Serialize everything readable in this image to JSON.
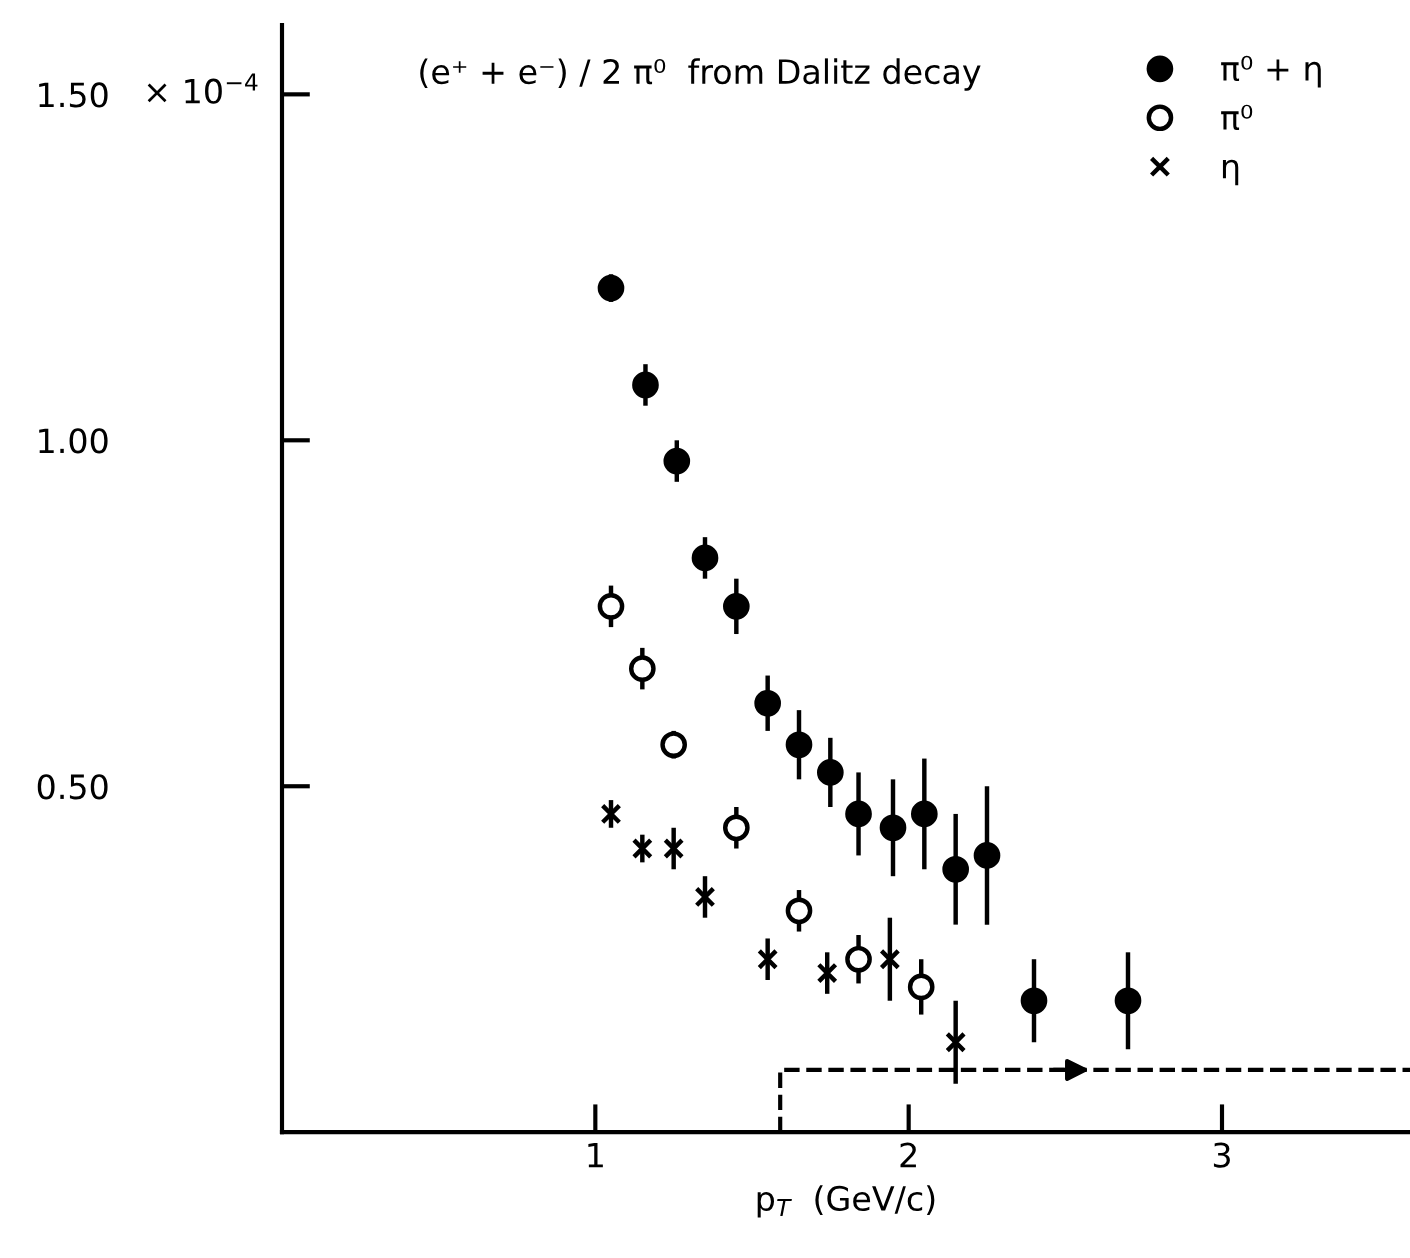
{
  "chart_data": {
    "type": "scatter",
    "title": "(e⁺ + e⁻) / 2 π⁰  from Dalitz decay",
    "xlabel": "p$_{T}$  (GeV/c)",
    "xlim": [
      0,
      3.6
    ],
    "xticks": [
      1,
      2,
      3
    ],
    "ylim": [
      0,
      1.6
    ],
    "yticks": [
      {
        "value": 0.5,
        "label": "0.50"
      },
      {
        "value": 1.0,
        "label": "1.00"
      },
      {
        "value": 1.5,
        "label": "1.50"
      }
    ],
    "annotations": [
      "× 10$^{−4}$"
    ],
    "grid": false,
    "legend": "top right",
    "series": [
      {
        "name": "π⁰ + η",
        "color": "#000000",
        "marker": "circle",
        "x": [
          1.05,
          1.16,
          1.26,
          1.35,
          1.45,
          1.55,
          1.65,
          1.75,
          1.84,
          1.95,
          2.05,
          2.15,
          2.25,
          2.4,
          2.7
        ],
        "values": [
          1.22,
          1.08,
          0.97,
          0.83,
          0.76,
          0.62,
          0.56,
          0.52,
          0.46,
          0.44,
          0.46,
          0.38,
          0.4,
          0.19,
          0.19
        ],
        "errors": [
          0.02,
          0.03,
          0.03,
          0.03,
          0.04,
          0.04,
          0.05,
          0.05,
          0.06,
          0.07,
          0.08,
          0.08,
          0.1,
          0.06,
          0.07
        ]
      },
      {
        "name": "π⁰",
        "color": "#ffffff",
        "marker": "circle",
        "x": [
          1.05,
          1.15,
          1.25,
          1.45,
          1.65,
          1.84,
          2.04
        ],
        "values": [
          0.76,
          0.67,
          0.56,
          0.44,
          0.32,
          0.25,
          0.21
        ],
        "errors": [
          0.03,
          0.03,
          0.02,
          0.03,
          0.03,
          0.035,
          0.04
        ]
      },
      {
        "name": "η",
        "color": "#000000",
        "marker": "cross",
        "x": [
          1.05,
          1.15,
          1.25,
          1.35,
          1.55,
          1.74,
          1.94,
          2.15
        ],
        "values": [
          0.46,
          0.41,
          0.41,
          0.34,
          0.25,
          0.23,
          0.25,
          0.13
        ],
        "errors": [
          0.02,
          0.02,
          0.03,
          0.03,
          0.03,
          0.03,
          0.06,
          0.06
        ]
      },
      {
        "type": "line",
        "color": "#000000",
        "line_style": "dashed",
        "marker": "none",
        "x": [
          1.59,
          1.59,
          3.6
        ],
        "values": [
          0,
          0.09,
          0.09
        ]
      }
    ]
  }
}
